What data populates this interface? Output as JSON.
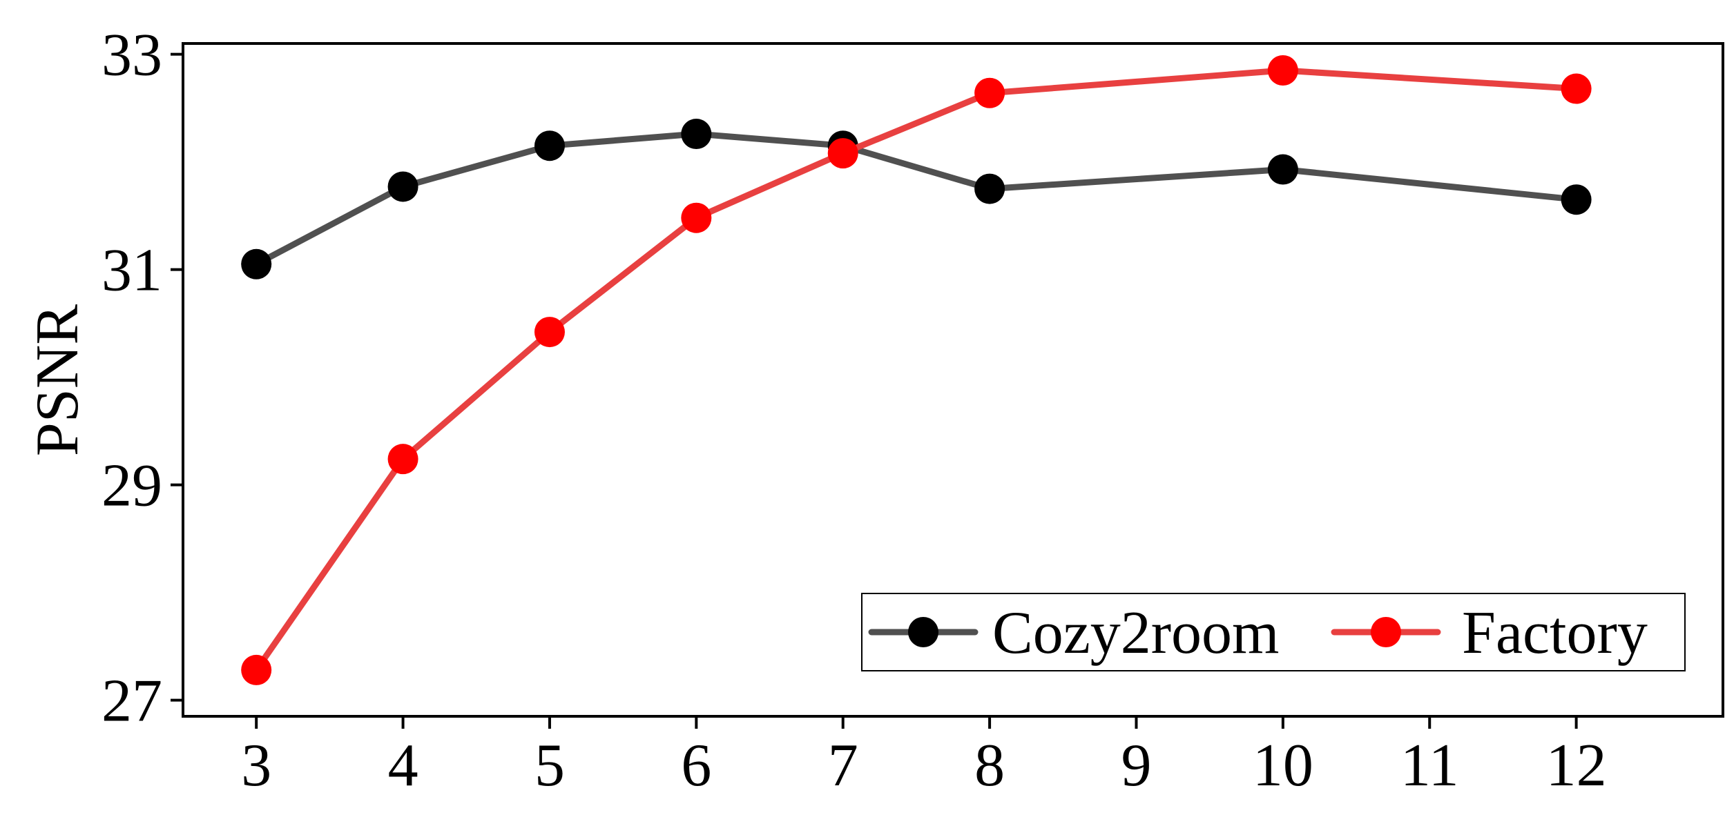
{
  "chart_data": {
    "type": "line",
    "title": "",
    "xlabel": "",
    "ylabel": "PSNR",
    "x_ticks": [
      3,
      4,
      5,
      6,
      7,
      8,
      9,
      10,
      11,
      12
    ],
    "y_ticks": [
      27,
      29,
      31,
      33
    ],
    "xlim": [
      2.5,
      13.0
    ],
    "ylim": [
      26.85,
      33.1
    ],
    "grid": false,
    "legend_position": "bottom-right",
    "series": [
      {
        "name": "Cozy2room",
        "color": "#505050",
        "marker_color": "#000000",
        "x": [
          3,
          4,
          5,
          6,
          7,
          8,
          10,
          12
        ],
        "y": [
          31.05,
          31.77,
          32.15,
          32.26,
          32.15,
          31.75,
          31.93,
          31.65
        ]
      },
      {
        "name": "Factory",
        "color": "#e84040",
        "marker_color": "#ff0000",
        "x": [
          3,
          4,
          5,
          6,
          7,
          8,
          10,
          12
        ],
        "y": [
          27.28,
          29.24,
          30.42,
          31.48,
          32.08,
          32.64,
          32.85,
          32.68
        ]
      }
    ]
  }
}
